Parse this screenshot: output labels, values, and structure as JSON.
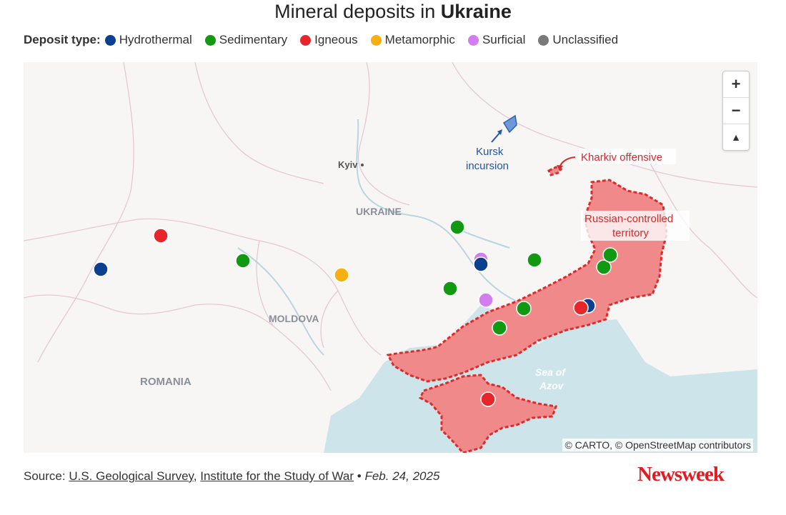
{
  "title": {
    "prefix": "Mineral deposits in ",
    "bold": "Ukraine"
  },
  "legend": {
    "label": "Deposit type:",
    "items": [
      {
        "name": "Hydrothermal",
        "color": "#0b3f8f"
      },
      {
        "name": "Sedimentary",
        "color": "#119a11"
      },
      {
        "name": "Igneous",
        "color": "#e7262c"
      },
      {
        "name": "Metamorphic",
        "color": "#f7b00f"
      },
      {
        "name": "Surficial",
        "color": "#d37df0"
      },
      {
        "name": "Unclassified",
        "color": "#7a7a7a"
      }
    ]
  },
  "map": {
    "place_labels": {
      "kyiv": "Kyiv",
      "ukraine": "UKRAINE",
      "moldova": "MOLDOVA",
      "romania": "ROMANIA",
      "sea": "Sea of",
      "sea2": "Azov"
    },
    "annotations": {
      "kursk_line1": "Kursk",
      "kursk_line2": "incursion",
      "kharkiv": "Kharkiv offensive",
      "russian_line1": "Russian-controlled",
      "russian_line2": "territory"
    },
    "controls": {
      "zoom_in": "+",
      "zoom_out": "−",
      "reset": "▲"
    },
    "attribution": "© CARTO, © OpenStreetMap contributors",
    "occupied_color": "#f0898a",
    "occupied_border": "#e02a2a",
    "water_color": "#cde5ea"
  },
  "deposits": [
    {
      "type": "Igneous",
      "color": "#e7262c"
    },
    {
      "type": "Hydrothermal",
      "color": "#0b3f8f"
    },
    {
      "type": "Sedimentary",
      "color": "#119a11"
    },
    {
      "type": "Metamorphic",
      "color": "#f7b00f"
    },
    {
      "type": "Sedimentary",
      "color": "#119a11"
    },
    {
      "type": "Surficial",
      "color": "#d37df0"
    },
    {
      "type": "Hydrothermal",
      "color": "#0b3f8f"
    },
    {
      "type": "Sedimentary",
      "color": "#119a11"
    },
    {
      "type": "Sedimentary",
      "color": "#119a11"
    },
    {
      "type": "Surficial",
      "color": "#d37df0"
    },
    {
      "type": "Sedimentary",
      "color": "#119a11"
    },
    {
      "type": "Sedimentary",
      "color": "#119a11"
    },
    {
      "type": "Hydrothermal",
      "color": "#0b3f8f"
    },
    {
      "type": "Igneous",
      "color": "#e7262c"
    },
    {
      "type": "Sedimentary",
      "color": "#119a11"
    },
    {
      "type": "Sedimentary",
      "color": "#119a11"
    },
    {
      "type": "Igneous",
      "color": "#e7262c"
    }
  ],
  "source": {
    "prefix": "Source: ",
    "link1": "U.S. Geological Survey",
    "sep": ", ",
    "link2": "Institute for the Study of War",
    "bullet": " • ",
    "date": "Feb. 24, 2025"
  },
  "logo": "Newsweek"
}
